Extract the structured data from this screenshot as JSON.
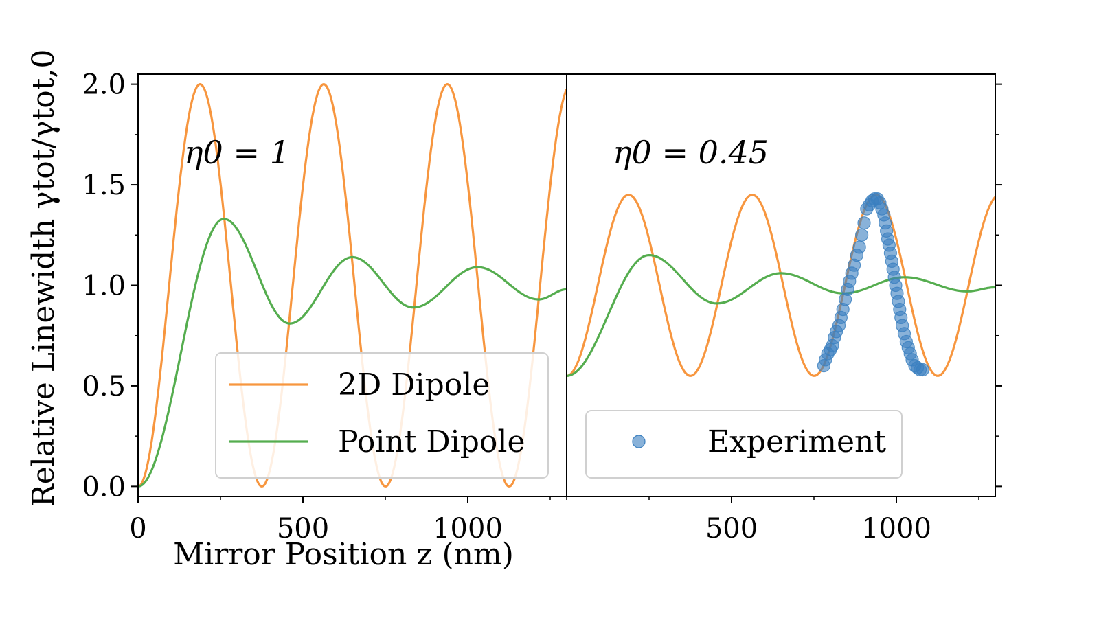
{
  "colors": {
    "two_d_dipole": "#f7963f",
    "point_dipole": "#55ad4f",
    "experiment": "#3a7fbf",
    "axes": "#000000",
    "legend_border": "#d0d0d0"
  },
  "figure": {
    "ylabel": "Relative Linewidth γtot/γtot,0",
    "xlabel": "Mirror Position z (nm)"
  },
  "chart_data": [
    {
      "type": "line",
      "panel": "left",
      "annotation": "η0 = 1",
      "xlim": [
        0,
        1300
      ],
      "ylim": [
        -0.05,
        2.05
      ],
      "xticks": [
        0,
        500,
        1000
      ],
      "xtick_labels": [
        "0",
        "500",
        "1000"
      ],
      "yticks": [
        0.0,
        0.5,
        1.0,
        1.5,
        2.0
      ],
      "ytick_labels": [
        "0.0",
        "0.5",
        "1.0",
        "1.5",
        "2.0"
      ],
      "grid": false,
      "legend": {
        "position": "lower-right",
        "entries": [
          "2D Dipole",
          "Point Dipole"
        ]
      },
      "series": [
        {
          "name": "2D Dipole",
          "model": "2d",
          "eta": 1,
          "color_key": "two_d_dipole",
          "peaks_x": [
            188,
            563,
            938,
            1313
          ],
          "peak_y": 2.0,
          "min_y": 0.0
        },
        {
          "name": "Point Dipole",
          "model": "point",
          "eta": 1,
          "color_key": "point_dipole",
          "extrema": [
            [
              0,
              0.0
            ],
            [
              260,
              1.33
            ],
            [
              460,
              0.81
            ],
            [
              650,
              1.14
            ],
            [
              835,
              0.89
            ],
            [
              1030,
              1.09
            ],
            [
              1215,
              0.93
            ],
            [
              1300,
              0.98
            ]
          ]
        }
      ]
    },
    {
      "type": "line+scatter",
      "panel": "right",
      "annotation": "η0 = 0.45",
      "xlim": [
        0,
        1300
      ],
      "ylim": [
        -0.05,
        2.05
      ],
      "xticks": [
        500,
        1000
      ],
      "xtick_labels": [
        "500",
        "1000"
      ],
      "yticks": [
        0.0,
        0.5,
        1.0,
        1.5,
        2.0
      ],
      "grid": false,
      "legend": {
        "position": "lower-right",
        "entries": [
          "Experiment"
        ]
      },
      "series": [
        {
          "name": "2D Dipole",
          "model": "2d",
          "eta": 0.45,
          "color_key": "two_d_dipole",
          "peaks_x": [
            188,
            563,
            938,
            1313
          ],
          "peak_y": 1.45,
          "min_y": 0.55
        },
        {
          "name": "Point Dipole",
          "model": "point",
          "eta": 0.45,
          "color_key": "point_dipole",
          "extrema": [
            [
              0,
              0.55
            ],
            [
              250,
              1.15
            ],
            [
              455,
              0.91
            ],
            [
              650,
              1.06
            ],
            [
              840,
              0.96
            ],
            [
              1025,
              1.04
            ],
            [
              1215,
              0.97
            ],
            [
              1300,
              0.99
            ]
          ]
        },
        {
          "name": "Experiment",
          "type": "scatter",
          "color_key": "experiment",
          "points": [
            [
              780,
              0.6
            ],
            [
              785,
              0.63
            ],
            [
              792,
              0.66
            ],
            [
              800,
              0.68
            ],
            [
              806,
              0.7
            ],
            [
              812,
              0.74
            ],
            [
              818,
              0.77
            ],
            [
              826,
              0.8
            ],
            [
              832,
              0.84
            ],
            [
              838,
              0.88
            ],
            [
              845,
              0.93
            ],
            [
              852,
              0.98
            ],
            [
              858,
              1.02
            ],
            [
              865,
              1.06
            ],
            [
              872,
              1.1
            ],
            [
              880,
              1.15
            ],
            [
              888,
              1.19
            ],
            [
              895,
              1.25
            ],
            [
              902,
              1.31
            ],
            [
              910,
              1.38
            ],
            [
              918,
              1.4
            ],
            [
              926,
              1.42
            ],
            [
              934,
              1.43
            ],
            [
              942,
              1.43
            ],
            [
              950,
              1.41
            ],
            [
              956,
              1.38
            ],
            [
              962,
              1.35
            ],
            [
              966,
              1.31
            ],
            [
              970,
              1.27
            ],
            [
              974,
              1.23
            ],
            [
              978,
              1.2
            ],
            [
              982,
              1.16
            ],
            [
              986,
              1.12
            ],
            [
              990,
              1.08
            ],
            [
              994,
              1.04
            ],
            [
              998,
              1.0
            ],
            [
              1002,
              0.96
            ],
            [
              1006,
              0.92
            ],
            [
              1010,
              0.88
            ],
            [
              1014,
              0.84
            ],
            [
              1018,
              0.8
            ],
            [
              1024,
              0.76
            ],
            [
              1030,
              0.72
            ],
            [
              1036,
              0.69
            ],
            [
              1042,
              0.66
            ],
            [
              1048,
              0.63
            ],
            [
              1056,
              0.6
            ],
            [
              1064,
              0.59
            ],
            [
              1072,
              0.58
            ],
            [
              1080,
              0.58
            ]
          ]
        }
      ]
    }
  ]
}
